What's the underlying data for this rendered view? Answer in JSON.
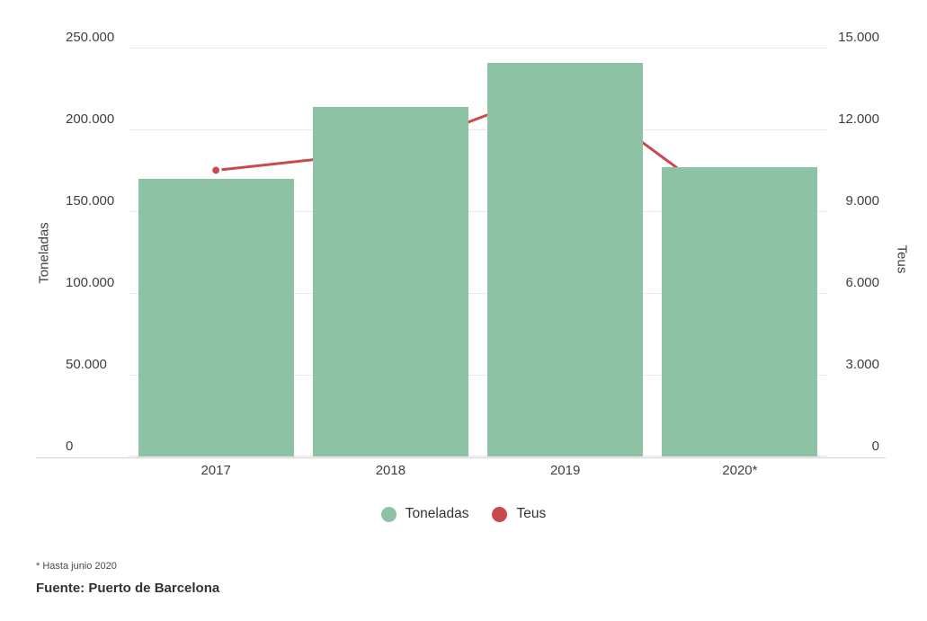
{
  "chart_data": {
    "type": "combo-bar-line",
    "categories": [
      "2017",
      "2018",
      "2019",
      "2020*"
    ],
    "series": [
      {
        "name": "Toneladas",
        "type": "bar",
        "axis": "left",
        "color": "#8dc3a4",
        "values": [
          170000,
          213500,
          240500,
          177000
        ]
      },
      {
        "name": "Teus",
        "type": "line",
        "axis": "right",
        "color": "#c9494d",
        "values": [
          10500,
          11200,
          13600,
          8900
        ]
      }
    ],
    "left_axis": {
      "title": "Toneladas",
      "min": 0,
      "max": 250000,
      "tick_step": 50000,
      "tick_labels": [
        "0",
        "50.000",
        "100.000",
        "150.000",
        "200.000",
        "250.000"
      ]
    },
    "right_axis": {
      "title": "Teus",
      "min": 0,
      "max": 15000,
      "tick_step": 3000,
      "tick_labels": [
        "0",
        "3.000",
        "6.000",
        "9.000",
        "12.000",
        "15.000"
      ]
    },
    "grid": true,
    "legend_position": "bottom"
  },
  "legend": {
    "items": [
      {
        "label": "Toneladas",
        "color": "#8dc3a4"
      },
      {
        "label": "Teus",
        "color": "#c9494d"
      }
    ]
  },
  "footnote": "* Hasta junio 2020",
  "source": {
    "prefix": "Fuente:",
    "name": "Puerto de Barcelona"
  },
  "colors": {
    "bar": "#8dc3a4",
    "line": "#c9494d",
    "marker_ring": "#ffffff",
    "grid": "#e9e9e9",
    "axis_line": "#d2d2d2",
    "tick_text": "#3f3f3f",
    "legend_text": "#333333"
  }
}
